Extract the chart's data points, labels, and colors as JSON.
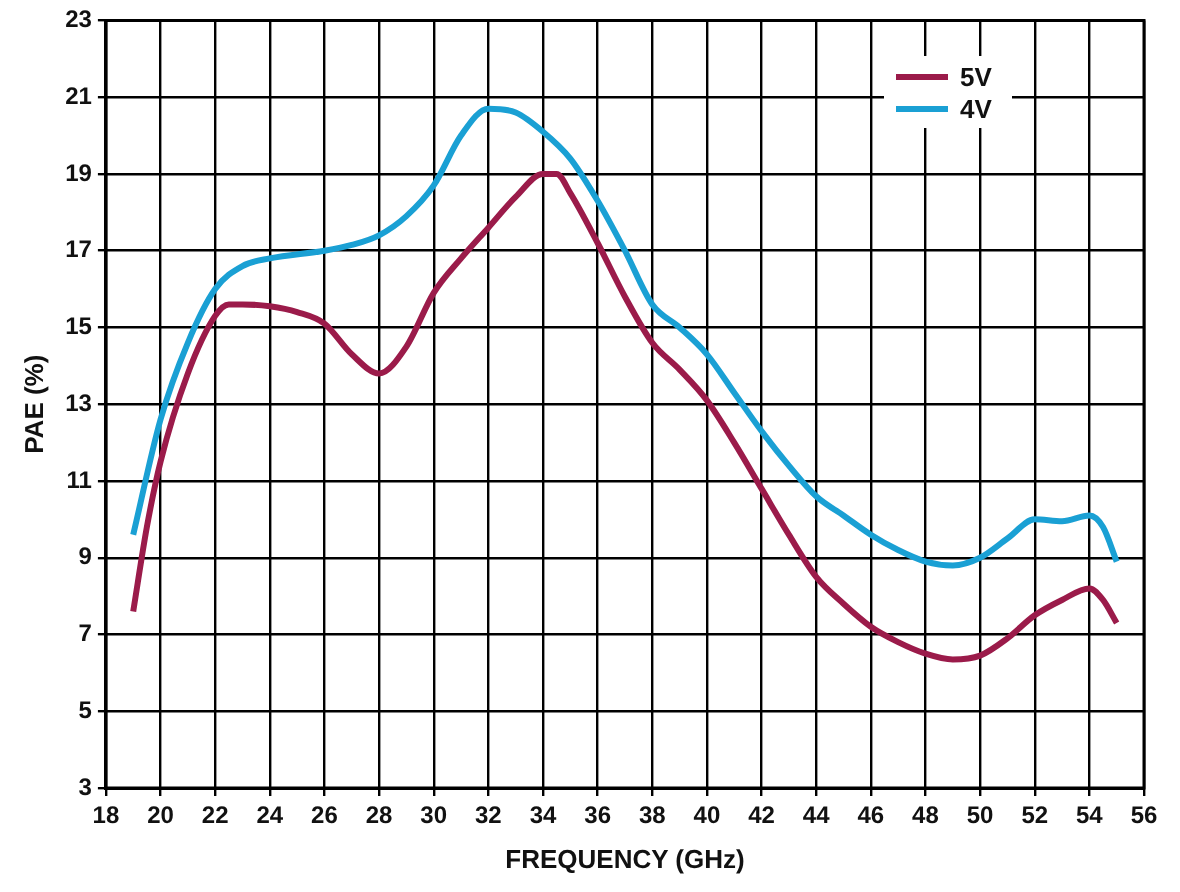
{
  "chart_data": {
    "type": "line",
    "xlabel": "FREQUENCY (GHz)",
    "ylabel": "PAE (%)",
    "xlim": [
      18,
      56
    ],
    "xticks": [
      18,
      20,
      22,
      24,
      26,
      28,
      30,
      32,
      34,
      36,
      38,
      40,
      42,
      44,
      46,
      48,
      50,
      52,
      54,
      56
    ],
    "ylim": [
      3,
      23
    ],
    "yticks": [
      3,
      5,
      7,
      9,
      11,
      13,
      15,
      17,
      19,
      21,
      23
    ],
    "grid": true,
    "legend": "top right",
    "marker": "none",
    "line_style": "solid",
    "series": [
      {
        "name": "5V",
        "color": "#9b1b4a",
        "x": [
          19,
          19.5,
          20,
          21,
          22,
          22.5,
          23,
          24,
          25,
          26,
          27,
          28,
          29,
          30,
          31,
          32,
          33,
          34,
          34.5,
          35,
          36,
          37,
          38,
          39,
          40,
          41,
          42,
          43,
          44,
          45,
          46,
          47,
          48,
          49,
          50,
          51,
          52,
          53,
          54,
          54.5,
          55
        ],
        "values": [
          7.6,
          9.8,
          11.5,
          13.8,
          15.3,
          15.6,
          15.6,
          15.55,
          15.4,
          15.1,
          14.3,
          13.8,
          14.5,
          15.9,
          16.8,
          17.6,
          18.4,
          19.0,
          19.0,
          18.5,
          17.2,
          15.8,
          14.6,
          13.9,
          13.1,
          12.0,
          10.8,
          9.6,
          8.5,
          7.8,
          7.2,
          6.8,
          6.5,
          6.35,
          6.45,
          6.9,
          7.5,
          7.9,
          8.2,
          7.9,
          7.3
        ]
      },
      {
        "name": "4V",
        "color": "#1aa0d4",
        "x": [
          19,
          20,
          21,
          22,
          23,
          24,
          26,
          27,
          28,
          29,
          30,
          31,
          32,
          33,
          34,
          35,
          36,
          37,
          38,
          39,
          40,
          41,
          42,
          43,
          44,
          45,
          46,
          47,
          48,
          49,
          50,
          51,
          52,
          53,
          54,
          54.5,
          55
        ],
        "values": [
          9.6,
          12.6,
          14.6,
          16.0,
          16.6,
          16.8,
          17.0,
          17.15,
          17.4,
          17.9,
          18.7,
          20.0,
          20.7,
          20.6,
          20.1,
          19.4,
          18.3,
          17.0,
          15.6,
          15.0,
          14.3,
          13.3,
          12.3,
          11.4,
          10.6,
          10.1,
          9.6,
          9.2,
          8.9,
          8.8,
          9.0,
          9.5,
          10.0,
          9.95,
          10.1,
          9.8,
          8.9
        ]
      }
    ]
  }
}
